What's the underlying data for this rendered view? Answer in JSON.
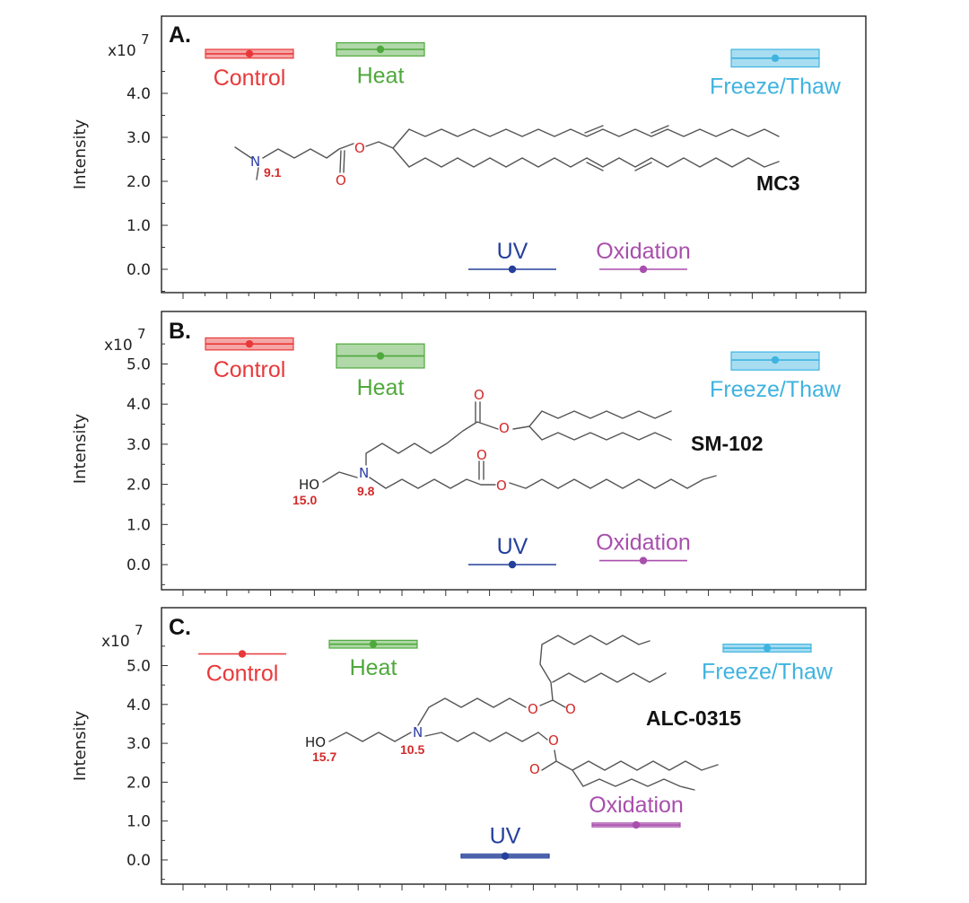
{
  "y_axis_label": "Intensity",
  "scale_label": "x10",
  "scale_exponent": "7",
  "series_colors": {
    "Control": "#e8393a",
    "Heat": "#4fa83d",
    "Freeze/Thaw": "#3fb3e0",
    "UV": "#24409a",
    "Oxidation": "#a84fad"
  },
  "chart_data": [
    {
      "type": "scatter",
      "panel": "A.",
      "molecule": "MC3",
      "pka_labels": [
        "9.1"
      ],
      "ylabel": "Intensity",
      "ylim": [
        -0.5,
        5.8
      ],
      "yticks": [
        "0.0",
        "1.0",
        "2.0",
        "3.0",
        "4.0"
      ],
      "series": [
        {
          "name": "Control",
          "value": 4.9,
          "range": [
            4.8,
            5.0
          ]
        },
        {
          "name": "Heat",
          "value": 5.0,
          "range": [
            4.85,
            5.15
          ]
        },
        {
          "name": "Freeze/Thaw",
          "value": 4.8,
          "range": [
            4.6,
            5.0
          ]
        },
        {
          "name": "UV",
          "value": 0.0,
          "range": [
            0.0,
            0.0
          ]
        },
        {
          "name": "Oxidation",
          "value": 0.0,
          "range": [
            0.0,
            0.0
          ]
        }
      ]
    },
    {
      "type": "scatter",
      "panel": "B.",
      "molecule": "SM-102",
      "pka_labels": [
        "15.0",
        "9.8"
      ],
      "ylabel": "Intensity",
      "ylim": [
        -0.3,
        6.3
      ],
      "yticks": [
        "0.0",
        "1.0",
        "2.0",
        "3.0",
        "4.0",
        "5.0"
      ],
      "series": [
        {
          "name": "Control",
          "value": 5.5,
          "range": [
            5.35,
            5.65
          ]
        },
        {
          "name": "Heat",
          "value": 5.2,
          "range": [
            4.9,
            5.5
          ]
        },
        {
          "name": "Freeze/Thaw",
          "value": 5.1,
          "range": [
            4.85,
            5.3
          ]
        },
        {
          "name": "UV",
          "value": 0.0,
          "range": [
            0.0,
            0.0
          ]
        },
        {
          "name": "Oxidation",
          "value": 0.1,
          "range": [
            0.1,
            0.1
          ]
        }
      ]
    },
    {
      "type": "scatter",
      "panel": "C.",
      "molecule": "ALC-0315",
      "pka_labels": [
        "15.7",
        "10.5"
      ],
      "ylabel": "Intensity",
      "ylim": [
        -0.5,
        6.2
      ],
      "yticks": [
        "0.0",
        "1.0",
        "2.0",
        "3.0",
        "4.0",
        "5.0"
      ],
      "series": [
        {
          "name": "Control",
          "value": 5.3,
          "range": [
            5.3,
            5.3
          ]
        },
        {
          "name": "Heat",
          "value": 5.55,
          "range": [
            5.45,
            5.65
          ]
        },
        {
          "name": "Freeze/Thaw",
          "value": 5.45,
          "range": [
            5.35,
            5.55
          ]
        },
        {
          "name": "UV",
          "value": 0.1,
          "range": [
            0.05,
            0.15
          ]
        },
        {
          "name": "Oxidation",
          "value": 0.9,
          "range": [
            0.85,
            0.95
          ]
        }
      ]
    }
  ]
}
